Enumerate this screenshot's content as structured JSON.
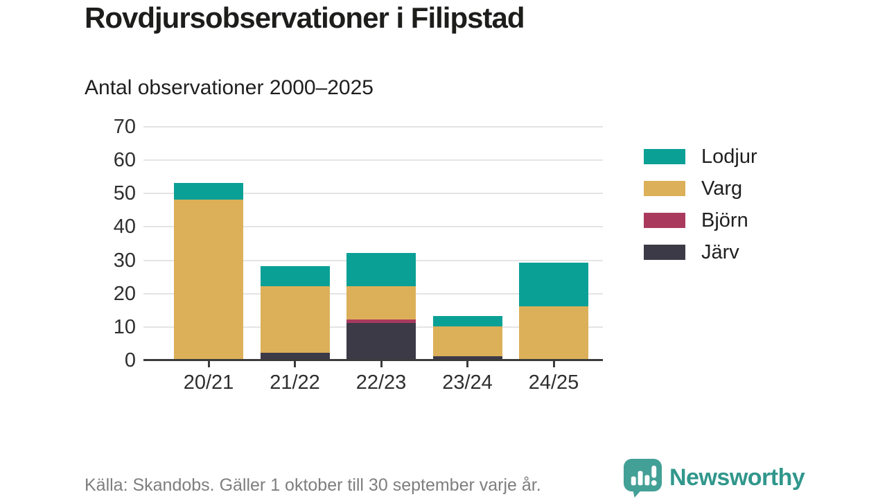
{
  "title": "Rovdjursobservationer i Filipstad",
  "subtitle": "Antal observationer 2000–2025",
  "footer": {
    "source": "Källa: Skandobs. Gäller 1 oktober till 30 september varje år."
  },
  "branding": {
    "name": "Newsworthy",
    "color": "#31978c",
    "icon": "speech-bubble-bar-chart-icon",
    "icon_color": "#43a096"
  },
  "chart_data": {
    "type": "bar",
    "stacked": true,
    "title": "Rovdjursobservationer i Filipstad",
    "subtitle": "Antal observationer 2000–2025",
    "categories": [
      "20/21",
      "21/22",
      "22/23",
      "23/24",
      "24/25"
    ],
    "series": [
      {
        "name": "Lodjur",
        "color": "#0aa096",
        "values": [
          5,
          6,
          10,
          3,
          13
        ]
      },
      {
        "name": "Varg",
        "color": "#dcb059",
        "values": [
          48,
          20,
          10,
          9,
          16
        ]
      },
      {
        "name": "Björn",
        "color": "#a93a5e",
        "values": [
          0,
          0,
          1,
          0,
          0
        ]
      },
      {
        "name": "Järv",
        "color": "#3d3a48",
        "values": [
          0,
          2,
          11,
          1,
          0
        ]
      }
    ],
    "stack_order_bottom_to_top": [
      "Järv",
      "Björn",
      "Varg",
      "Lodjur"
    ],
    "totals": [
      53,
      28,
      32,
      13,
      29
    ],
    "xlabel": "",
    "ylabel": "",
    "ylim": [
      0,
      70
    ],
    "yticks": [
      0,
      10,
      20,
      30,
      40,
      50,
      60,
      70
    ],
    "grid": "horizontal",
    "gridline_color": "#e4e4e4",
    "axis_color": "#3b3b3b",
    "legend_position": "right"
  }
}
